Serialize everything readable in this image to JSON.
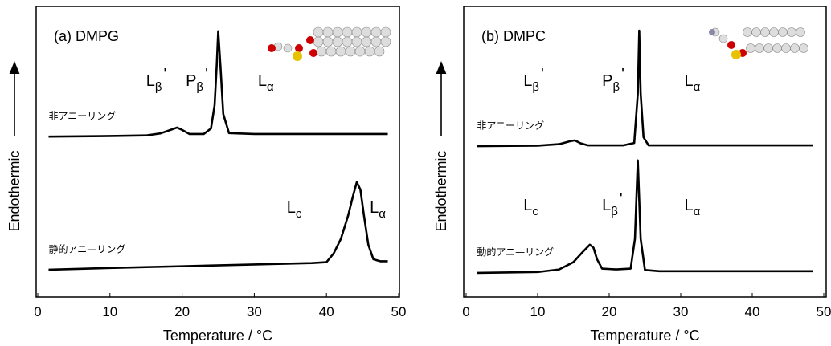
{
  "chart_data": [
    {
      "type": "line",
      "title": "(a) DMPG",
      "xlabel": "Temperature / °C",
      "ylabel": "Endothermic",
      "xlim": [
        0,
        50
      ],
      "xticks": [
        0,
        10,
        20,
        30,
        40,
        50
      ],
      "ylim": [
        0,
        100
      ],
      "series": [
        {
          "name": "非アニーリング",
          "color": "#000000",
          "x": [
            1.5,
            10,
            15,
            17,
            18.5,
            19.3,
            20,
            21,
            23,
            24,
            24.5,
            24.8,
            25,
            25.3,
            25.7,
            26.5,
            30,
            40,
            48.5
          ],
          "values": [
            55.2,
            55.4,
            55.6,
            56.3,
            57.6,
            58.3,
            57.5,
            56.1,
            56.1,
            58,
            66,
            80,
            91.5,
            80,
            63,
            56.4,
            56.1,
            56.1,
            56.1
          ]
        },
        {
          "name": "静的アニ—リング",
          "color": "#000000",
          "x": [
            1.5,
            10,
            20,
            30,
            38,
            40,
            41,
            42,
            43,
            43.7,
            44.2,
            44.7,
            45.2,
            45.8,
            46.5,
            47.5,
            48.5
          ],
          "values": [
            9.4,
            10,
            10.6,
            11.2,
            11.7,
            12,
            15,
            20,
            28,
            35,
            39.5,
            37,
            28,
            18,
            13,
            12.3,
            12.3
          ]
        }
      ],
      "annotations": [
        {
          "base": "L",
          "sub": "β",
          "suffix": "'",
          "x": 15,
          "y": 72.7
        },
        {
          "base": "P",
          "sub": "β",
          "suffix": "'",
          "x": 20.5,
          "y": 72.7
        },
        {
          "base": "L",
          "sub": "α",
          "x": 30.5,
          "y": 72.7
        },
        {
          "base": "L",
          "sub": "c",
          "x": 34.5,
          "y": 29
        },
        {
          "base": "L",
          "sub": "α",
          "x": 46,
          "y": 29
        }
      ]
    },
    {
      "type": "line",
      "title": "(b) DMPC",
      "xlabel": "Temperature / °C",
      "ylabel": "Endothermic",
      "xlim": [
        0,
        50
      ],
      "xticks": [
        0,
        10,
        20,
        30,
        40,
        50
      ],
      "ylim": [
        0,
        100
      ],
      "series": [
        {
          "name": "非アニーリング",
          "color": "#000000",
          "x": [
            1.5,
            10,
            13,
            14.5,
            15.2,
            16,
            17,
            22,
            23.5,
            24,
            24.2,
            24.4,
            24.8,
            25.5,
            30,
            40,
            48.5
          ],
          "values": [
            51.9,
            52.1,
            52.6,
            53.6,
            53.9,
            52.9,
            52.2,
            52.2,
            53,
            70,
            91.7,
            70,
            55,
            52.2,
            52.2,
            52.2,
            52.2
          ]
        },
        {
          "name": "動的アニ—リング",
          "color": "#000000",
          "x": [
            1.5,
            10,
            13,
            15,
            16.3,
            17.3,
            17.8,
            18.3,
            19,
            21,
            23,
            23.6,
            24,
            24.4,
            25,
            27,
            40,
            48.5
          ],
          "values": [
            8.3,
            8.6,
            9.5,
            12,
            15.5,
            18,
            17,
            13,
            9.8,
            9.5,
            9.8,
            20,
            47,
            20,
            9.3,
            8.9,
            8.9,
            8.9
          ]
        }
      ],
      "annotations": [
        {
          "base": "L",
          "sub": "β",
          "suffix": "'",
          "x": 8,
          "y": 72.7
        },
        {
          "base": "P",
          "sub": "β",
          "suffix": "'",
          "x": 19,
          "y": 72.7
        },
        {
          "base": "L",
          "sub": "α",
          "x": 30.5,
          "y": 72.7
        },
        {
          "base": "L",
          "sub": "c",
          "x": 8,
          "y": 29.8
        },
        {
          "base": "L",
          "sub": "β",
          "suffix": "'",
          "x": 19,
          "y": 29.8
        },
        {
          "base": "L",
          "sub": "α",
          "x": 30.5,
          "y": 29.8
        }
      ]
    }
  ]
}
